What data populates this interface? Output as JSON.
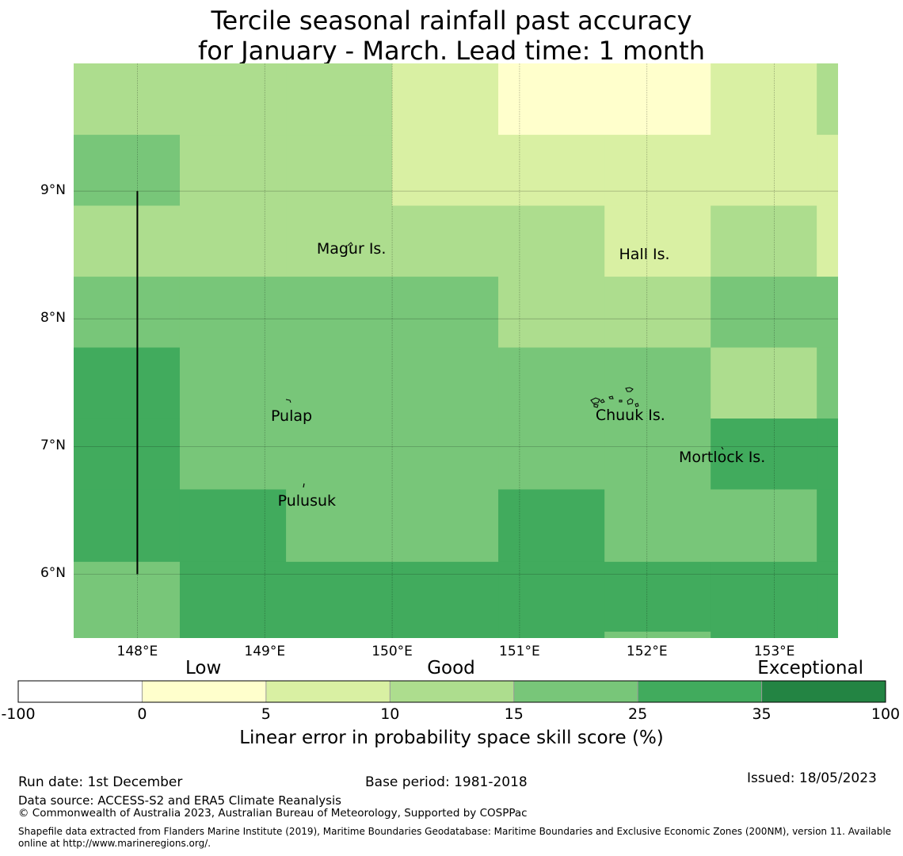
{
  "title": {
    "line1": "Tercile seasonal rainfall past accuracy",
    "line2": "for January - March. Lead time: 1 month"
  },
  "colors": {
    "white": "#ffffff",
    "c0_5": "#ffffcc",
    "c5_10": "#d9f0a3",
    "c10_15": "#addd8e",
    "c15_25": "#78c679",
    "c25_35": "#41ab5d",
    "c35_100": "#238443",
    "line": "#000000"
  },
  "map": {
    "lon_range": [
      147.5,
      153.5
    ],
    "lat_range": [
      5.5,
      10.0
    ],
    "grid_lon": [
      147.5,
      148.333,
      149.167,
      150.0,
      150.833,
      151.667,
      152.5,
      153.333,
      153.5
    ],
    "grid_lat": [
      5.5,
      6.1,
      6.667,
      7.222,
      7.778,
      8.333,
      8.889,
      9.444,
      10.0
    ],
    "rows": [
      [
        "c15_25",
        "c25_35",
        "c25_35",
        "c25_35",
        "c25_35",
        "c25_35",
        "c25_35",
        "c25_35"
      ],
      [
        "c25_35",
        "c25_35",
        "c15_25",
        "c15_25",
        "c25_35",
        "c15_25",
        "c15_25",
        "c25_35"
      ],
      [
        "c25_35",
        "c15_25",
        "c15_25",
        "c15_25",
        "c15_25",
        "c15_25",
        "c25_35",
        "c25_35"
      ],
      [
        "c25_35",
        "c15_25",
        "c15_25",
        "c15_25",
        "c15_25",
        "c15_25",
        "c10_15",
        "c15_25"
      ],
      [
        "c15_25",
        "c15_25",
        "c15_25",
        "c15_25",
        "c10_15",
        "c10_15",
        "c15_25",
        "c15_25"
      ],
      [
        "c10_15",
        "c10_15",
        "c10_15",
        "c10_15",
        "c10_15",
        "c5_10",
        "c10_15",
        "c5_10"
      ],
      [
        "c15_25",
        "c10_15",
        "c10_15",
        "c5_10",
        "c5_10",
        "c5_10",
        "c5_10",
        "c5_10"
      ],
      [
        "c10_15",
        "c10_15",
        "c10_15",
        "c5_10",
        "c0_5",
        "c0_5",
        "c5_10",
        "c10_15"
      ]
    ],
    "extra_patches": [
      {
        "lon0": 151.667,
        "lon1": 152.5,
        "lat0": 5.5,
        "lat1": 5.55,
        "color": "c15_25"
      }
    ],
    "x_ticks": [
      {
        "lon": 148,
        "label": "148°E"
      },
      {
        "lon": 149,
        "label": "149°E"
      },
      {
        "lon": 150,
        "label": "150°E"
      },
      {
        "lon": 151,
        "label": "151°E"
      },
      {
        "lon": 152,
        "label": "152°E"
      },
      {
        "lon": 153,
        "label": "153°E"
      }
    ],
    "y_ticks": [
      {
        "lat": 9,
        "label": "9°N"
      },
      {
        "lat": 8,
        "label": "8°N"
      },
      {
        "lat": 7,
        "label": "7°N"
      },
      {
        "lat": 6,
        "label": "6°N"
      }
    ],
    "boundary_line": {
      "lon": 148,
      "lat0": 6,
      "lat1": 9
    },
    "places": [
      {
        "name": "Magur Is.",
        "lon": 149.68,
        "lat": 8.54
      },
      {
        "name": "Hall Is.",
        "lon": 151.98,
        "lat": 8.5
      },
      {
        "name": "Pulap",
        "lon": 149.21,
        "lat": 7.23
      },
      {
        "name": "Chuuk Is.",
        "lon": 151.87,
        "lat": 7.24
      },
      {
        "name": "Mortlock Is.",
        "lon": 152.59,
        "lat": 6.91
      },
      {
        "name": "Pulusuk",
        "lon": 149.33,
        "lat": 6.57
      }
    ]
  },
  "colorbar": {
    "categories": [
      {
        "label": "Low",
        "pos": 1.5
      },
      {
        "label": "Good",
        "pos": 3.5
      },
      {
        "label": "Exceptional",
        "pos": 6.4
      }
    ],
    "bins": [
      "white",
      "c0_5",
      "c5_10",
      "c10_15",
      "c15_25",
      "c25_35",
      "c35_100"
    ],
    "ticks": [
      "-100",
      "0",
      "5",
      "10",
      "15",
      "25",
      "35",
      "100"
    ],
    "label": "Linear error in probability space skill score (%)"
  },
  "footer": {
    "run_date": "Run date: 1st December",
    "base_period": "Base period: 1981-2018",
    "issued": "Issued: 18/05/2023",
    "data_source": "Data source: ACCESS-S2 and ERA5 Climate Reanalysis",
    "copyright": "© Commonwealth of Australia 2023, Australian Bureau of Meteorology, Supported by COSPPac",
    "shapefile_line1": "Shapefile data extracted from Flanders Marine Institute (2019), Maritime Boundaries Geodatabase: Maritime Boundaries and Exclusive Economic Zones (200NM), version 11. Available",
    "shapefile_line2": "online at http://www.marineregions.org/."
  }
}
